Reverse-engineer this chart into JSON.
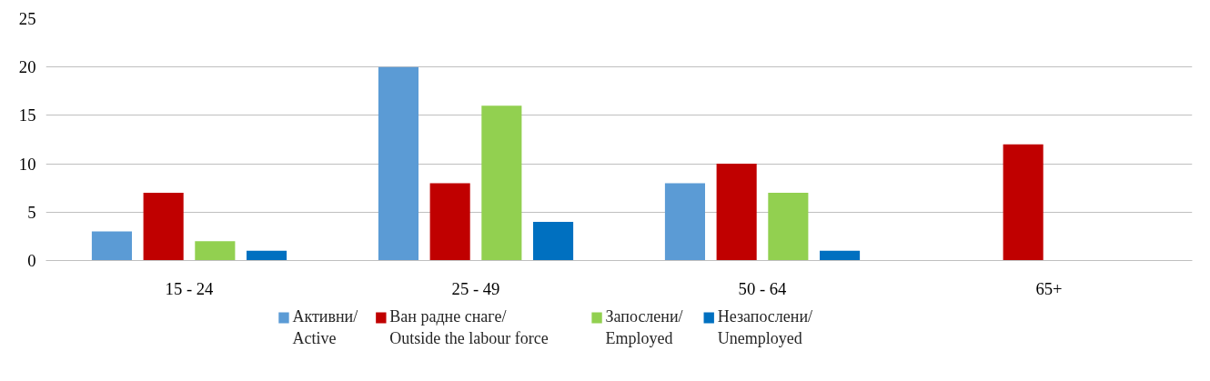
{
  "chart_data": {
    "type": "bar",
    "categories": [
      "15 - 24",
      "25 - 49",
      "50 - 64",
      "65+"
    ],
    "series": [
      {
        "name": "Активни/\nActive",
        "color": "#5b9bd5",
        "values": [
          3,
          20,
          8,
          null
        ]
      },
      {
        "name": "Ван радне снаге/\nOutside the labour force",
        "color": "#c00000",
        "values": [
          7,
          8,
          10,
          12
        ]
      },
      {
        "name": "Запослени/\nEmployed",
        "color": "#92d050",
        "values": [
          2,
          16,
          7,
          null
        ]
      },
      {
        "name": "Незапослени/\nUnemployed",
        "color": "#0070c0",
        "values": [
          1,
          4,
          1,
          null
        ]
      }
    ],
    "ylim": [
      0,
      25
    ],
    "yticks": [
      0,
      5,
      10,
      15,
      20,
      25
    ],
    "grid": "y",
    "legend": "bottom"
  }
}
